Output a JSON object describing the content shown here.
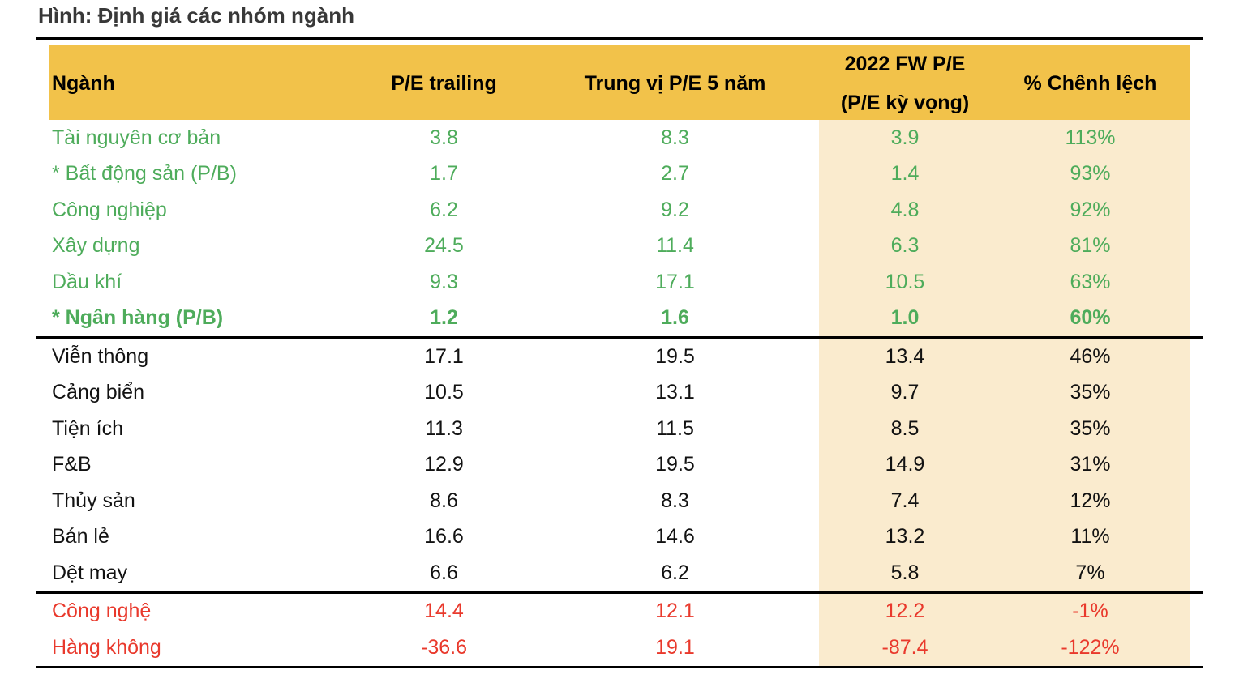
{
  "chart_data": {
    "type": "table",
    "title": "Hình: Định giá các nhóm ngành",
    "header": {
      "col1": "Ngành",
      "col2": "P/E trailing",
      "col3": "Trung vị P/E 5 năm",
      "col4_line1": "2022 FW P/E",
      "col4_line2": "(P/E kỳ vọng)",
      "col5": "% Chênh lệch"
    },
    "columns": [
      "Ngành",
      "P/E trailing",
      "Trung vị P/E 5 năm",
      "2022 FW P/E (P/E kỳ vọng)",
      "% Chênh lệch"
    ],
    "rows": [
      {
        "nganh": "Tài nguyên cơ bản",
        "pe_trailing": "3.8",
        "pe_median_5y": "8.3",
        "pe_fw_2022": "3.9",
        "chenh_lech": "113%",
        "group": "green",
        "bold": false
      },
      {
        "nganh": "* Bất động sản (P/B)",
        "pe_trailing": "1.7",
        "pe_median_5y": "2.7",
        "pe_fw_2022": "1.4",
        "chenh_lech": "93%",
        "group": "green",
        "bold": false
      },
      {
        "nganh": "Công nghiệp",
        "pe_trailing": "6.2",
        "pe_median_5y": "9.2",
        "pe_fw_2022": "4.8",
        "chenh_lech": "92%",
        "group": "green",
        "bold": false
      },
      {
        "nganh": "Xây dựng",
        "pe_trailing": "24.5",
        "pe_median_5y": "11.4",
        "pe_fw_2022": "6.3",
        "chenh_lech": "81%",
        "group": "green",
        "bold": false
      },
      {
        "nganh": "Dầu khí",
        "pe_trailing": "9.3",
        "pe_median_5y": "17.1",
        "pe_fw_2022": "10.5",
        "chenh_lech": "63%",
        "group": "green",
        "bold": false
      },
      {
        "nganh": "* Ngân hàng (P/B)",
        "pe_trailing": "1.2",
        "pe_median_5y": "1.6",
        "pe_fw_2022": "1.0",
        "chenh_lech": "60%",
        "group": "green",
        "bold": true
      },
      {
        "nganh": "Viễn thông",
        "pe_trailing": "17.1",
        "pe_median_5y": "19.5",
        "pe_fw_2022": "13.4",
        "chenh_lech": "46%",
        "group": "black",
        "bold": false
      },
      {
        "nganh": "Cảng biển",
        "pe_trailing": "10.5",
        "pe_median_5y": "13.1",
        "pe_fw_2022": "9.7",
        "chenh_lech": "35%",
        "group": "black",
        "bold": false
      },
      {
        "nganh": "Tiện ích",
        "pe_trailing": "11.3",
        "pe_median_5y": "11.5",
        "pe_fw_2022": "8.5",
        "chenh_lech": "35%",
        "group": "black",
        "bold": false
      },
      {
        "nganh": "F&B",
        "pe_trailing": "12.9",
        "pe_median_5y": "19.5",
        "pe_fw_2022": "14.9",
        "chenh_lech": "31%",
        "group": "black",
        "bold": false
      },
      {
        "nganh": "Thủy sản",
        "pe_trailing": "8.6",
        "pe_median_5y": "8.3",
        "pe_fw_2022": "7.4",
        "chenh_lech": "12%",
        "group": "black",
        "bold": false
      },
      {
        "nganh": "Bán lẻ",
        "pe_trailing": "16.6",
        "pe_median_5y": "14.6",
        "pe_fw_2022": "13.2",
        "chenh_lech": "11%",
        "group": "black",
        "bold": false
      },
      {
        "nganh": "Dệt may",
        "pe_trailing": "6.6",
        "pe_median_5y": "6.2",
        "pe_fw_2022": "5.8",
        "chenh_lech": "7%",
        "group": "black",
        "bold": false
      },
      {
        "nganh": "Công nghệ",
        "pe_trailing": "14.4",
        "pe_median_5y": "12.1",
        "pe_fw_2022": "12.2",
        "chenh_lech": "-1%",
        "group": "red",
        "bold": false
      },
      {
        "nganh": "Hàng không",
        "pe_trailing": "-36.6",
        "pe_median_5y": "19.1",
        "pe_fw_2022": "-87.4",
        "chenh_lech": "-122%",
        "group": "red",
        "bold": false
      }
    ],
    "layout_hints": {
      "highlighted_columns": [
        "2022 FW P/E (P/E kỳ vọng)",
        "% Chênh lệch"
      ],
      "row_groups": [
        "green (định giá thấp)",
        "black (trung lập)",
        "red (định giá cao)"
      ]
    },
    "colors": {
      "header_bg": "#F2C24A",
      "highlight_bg": "#FAEBCE",
      "green_text": "#4EAC5B",
      "red_text": "#E9392C",
      "rule": "#000000",
      "title_text": "#383838"
    }
  }
}
